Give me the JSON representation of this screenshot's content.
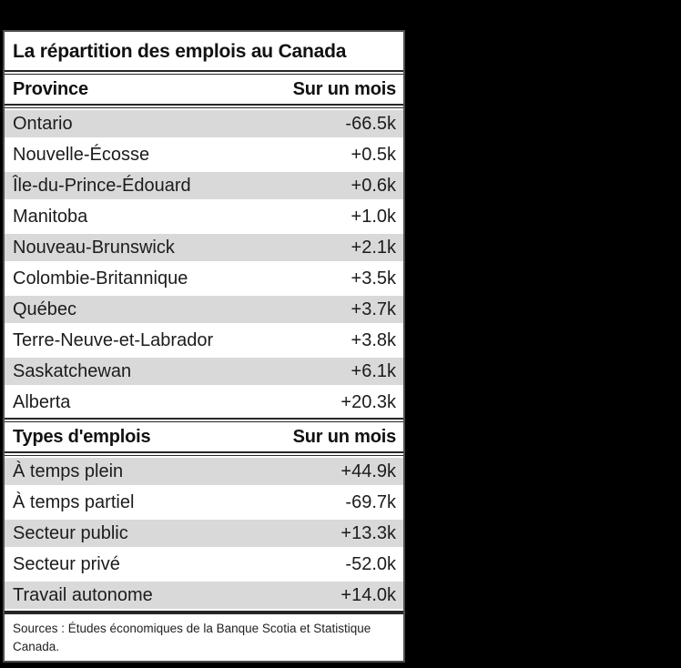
{
  "panel": {
    "title": "La répartition des emplois au Canada",
    "value_column_header": "Sur un mois",
    "sections": [
      {
        "header": {
          "label": "Province",
          "value": "Sur un mois"
        },
        "rows": [
          {
            "label": "Ontario",
            "value": "-66.5k"
          },
          {
            "label": "Nouvelle-Écosse",
            "value": "+0.5k"
          },
          {
            "label": "Île-du-Prince-Édouard",
            "value": "+0.6k"
          },
          {
            "label": "Manitoba",
            "value": "+1.0k"
          },
          {
            "label": "Nouveau-Brunswick",
            "value": "+2.1k"
          },
          {
            "label": "Colombie-Britannique",
            "value": "+3.5k"
          },
          {
            "label": "Québec",
            "value": "+3.7k"
          },
          {
            "label": "Terre-Neuve-et-Labrador",
            "value": "+3.8k"
          },
          {
            "label": "Saskatchewan",
            "value": "+6.1k"
          },
          {
            "label": "Alberta",
            "value": "+20.3k"
          }
        ]
      },
      {
        "header": {
          "label": "Types d'emplois",
          "value": "Sur un mois"
        },
        "rows": [
          {
            "label": "À temps plein",
            "value": "+44.9k"
          },
          {
            "label": "À temps partiel",
            "value": "-69.7k"
          },
          {
            "label": "Secteur public",
            "value": "+13.3k"
          },
          {
            "label": "Secteur privé",
            "value": "-52.0k"
          },
          {
            "label": "Travail autonome",
            "value": "+14.0k"
          }
        ]
      }
    ],
    "footer": "Sources : Études économiques de la Banque Scotia et Statistique Canada."
  },
  "colors": {
    "page_background": "#000000",
    "panel_background": "#ffffff",
    "stripe": "#d9d9d9",
    "rule": "#262626",
    "panel_border": "#4d4d4d",
    "text": "#1c1c1c"
  },
  "chart_data": [
    {
      "type": "table",
      "title": "La répartition des emplois au Canada",
      "columns": [
        "Province",
        "Sur un mois"
      ],
      "unit": "k (milliers d'emplois)",
      "rows": [
        [
          "Ontario",
          -66.5
        ],
        [
          "Nouvelle-Écosse",
          0.5
        ],
        [
          "Île-du-Prince-Édouard",
          0.6
        ],
        [
          "Manitoba",
          1.0
        ],
        [
          "Nouveau-Brunswick",
          2.1
        ],
        [
          "Colombie-Britannique",
          3.5
        ],
        [
          "Québec",
          3.7
        ],
        [
          "Terre-Neuve-et-Labrador",
          3.8
        ],
        [
          "Saskatchewan",
          6.1
        ],
        [
          "Alberta",
          20.3
        ]
      ]
    },
    {
      "type": "table",
      "title": "La répartition des emplois au Canada",
      "columns": [
        "Types d'emplois",
        "Sur un mois"
      ],
      "unit": "k (milliers d'emplois)",
      "rows": [
        [
          "À temps plein",
          44.9
        ],
        [
          "À temps partiel",
          -69.7
        ],
        [
          "Secteur public",
          13.3
        ],
        [
          "Secteur privé",
          -52.0
        ],
        [
          "Travail autonome",
          14.0
        ]
      ]
    }
  ]
}
